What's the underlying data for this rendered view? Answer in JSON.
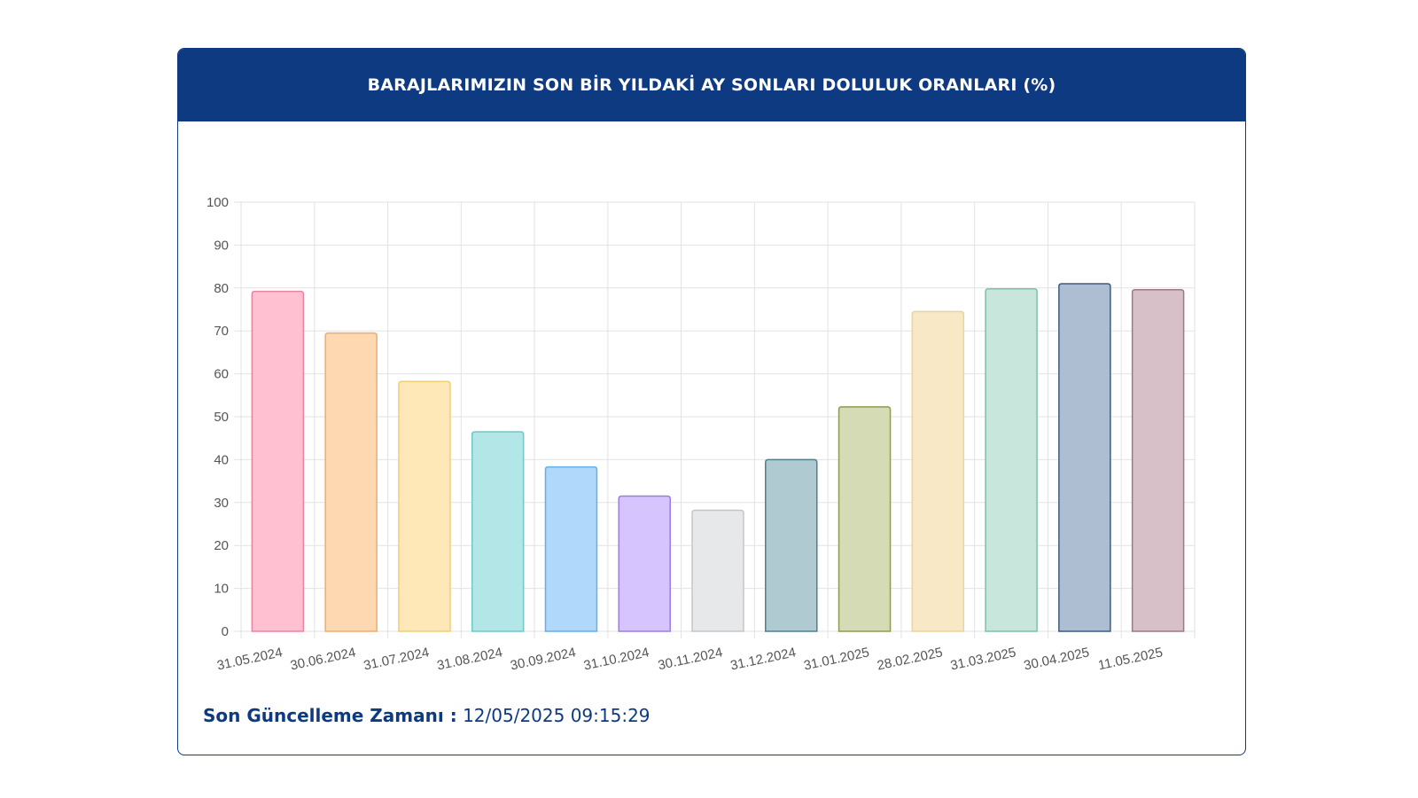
{
  "header": {
    "title": "BARAJLARIMIZIN SON BİR YILDAKİ AY SONLARI DOLULUK ORANLARI (%)"
  },
  "footer": {
    "label": "Son Güncelleme Zamanı :",
    "value": "12/05/2025 09:15:29"
  },
  "chart_data": {
    "type": "bar",
    "title": "BARAJLARIMIZIN SON BİR YILDAKİ AY SONLARI DOLULUK ORANLARI (%)",
    "xlabel": "",
    "ylabel": "",
    "ylim": [
      0,
      100
    ],
    "yticks": [
      0,
      10,
      20,
      30,
      40,
      50,
      60,
      70,
      80,
      90,
      100
    ],
    "grid": true,
    "categories": [
      "31.05.2024",
      "30.06.2024",
      "31.07.2024",
      "31.08.2024",
      "30.09.2024",
      "31.10.2024",
      "30.11.2024",
      "31.12.2024",
      "31.01.2025",
      "28.02.2025",
      "31.03.2025",
      "30.04.2025",
      "11.05.2025"
    ],
    "values": [
      79.2,
      69.5,
      58.2,
      46.5,
      38.3,
      31.5,
      28.2,
      40.0,
      52.3,
      74.5,
      79.8,
      81.0,
      79.6
    ],
    "colors": [
      {
        "fill": "#ffc1d2",
        "stroke": "#e9849d"
      },
      {
        "fill": "#fdd8b1",
        "stroke": "#eeac6e"
      },
      {
        "fill": "#fee8b8",
        "stroke": "#f1ce75"
      },
      {
        "fill": "#b3e6e6",
        "stroke": "#72c6c6"
      },
      {
        "fill": "#afd8fa",
        "stroke": "#66aee6"
      },
      {
        "fill": "#d5c4fd",
        "stroke": "#9b7fe0"
      },
      {
        "fill": "#e7e8ea",
        "stroke": "#c3c5c9"
      },
      {
        "fill": "#afcad0",
        "stroke": "#4f7f8a"
      },
      {
        "fill": "#d5dbb4",
        "stroke": "#8f9a52"
      },
      {
        "fill": "#f8e8c6",
        "stroke": "#ead49c"
      },
      {
        "fill": "#c8e6dc",
        "stroke": "#7cc1a8"
      },
      {
        "fill": "#adbdd2",
        "stroke": "#3f5a80"
      },
      {
        "fill": "#d7c0c8",
        "stroke": "#9a7a87"
      }
    ]
  }
}
